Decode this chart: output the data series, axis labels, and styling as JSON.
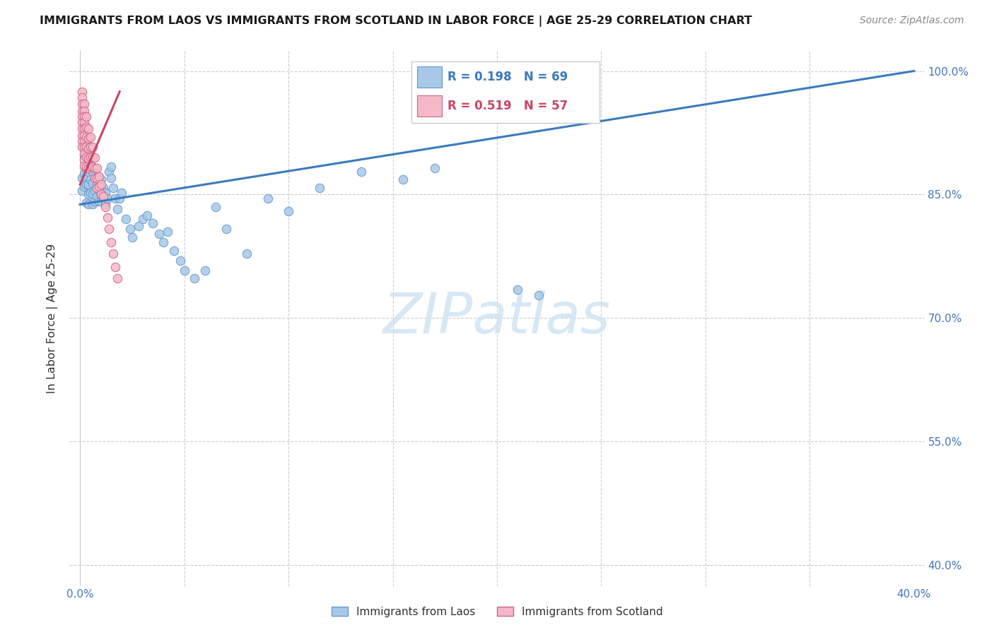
{
  "title": "IMMIGRANTS FROM LAOS VS IMMIGRANTS FROM SCOTLAND IN LABOR FORCE | AGE 25-29 CORRELATION CHART",
  "source": "Source: ZipAtlas.com",
  "ylabel": "In Labor Force | Age 25-29",
  "xlim": [
    -0.005,
    0.405
  ],
  "ylim": [
    0.375,
    1.025
  ],
  "yticks": [
    0.4,
    0.55,
    0.7,
    0.85,
    1.0
  ],
  "yticklabels": [
    "40.0%",
    "55.0%",
    "70.0%",
    "85.0%",
    "100.0%"
  ],
  "xticks": [
    0.0,
    0.05,
    0.1,
    0.15,
    0.2,
    0.25,
    0.3,
    0.35,
    0.4
  ],
  "xticklabels": [
    "0.0%",
    "",
    "",
    "",
    "",
    "",
    "",
    "",
    "40.0%"
  ],
  "grid_color": "#cccccc",
  "laos_color": "#a8c8e8",
  "laos_edge": "#6699cc",
  "scotland_color": "#f5b8c8",
  "scotland_edge": "#cc6688",
  "laos_R": 0.198,
  "laos_N": 69,
  "scotland_R": 0.519,
  "scotland_N": 57,
  "laos_line_color": "#3a7abf",
  "scotland_line_color": "#cc4466",
  "tick_color": "#4477bb",
  "background_color": "#ffffff",
  "watermark_color": "#d0e4f4",
  "laos_x": [
    0.001,
    0.001,
    0.002,
    0.002,
    0.002,
    0.003,
    0.003,
    0.003,
    0.003,
    0.003,
    0.004,
    0.004,
    0.004,
    0.004,
    0.005,
    0.005,
    0.005,
    0.006,
    0.006,
    0.006,
    0.006,
    0.007,
    0.007,
    0.008,
    0.008,
    0.009,
    0.009,
    0.01,
    0.01,
    0.01,
    0.011,
    0.011,
    0.012,
    0.012,
    0.013,
    0.014,
    0.015,
    0.015,
    0.016,
    0.017,
    0.018,
    0.019,
    0.02,
    0.022,
    0.024,
    0.025,
    0.028,
    0.03,
    0.032,
    0.035,
    0.038,
    0.04,
    0.042,
    0.045,
    0.048,
    0.05,
    0.055,
    0.06,
    0.065,
    0.07,
    0.08,
    0.09,
    0.1,
    0.115,
    0.135,
    0.155,
    0.17,
    0.21,
    0.22
  ],
  "laos_y": [
    0.87,
    0.855,
    0.875,
    0.86,
    0.898,
    0.872,
    0.895,
    0.88,
    0.862,
    0.84,
    0.878,
    0.862,
    0.85,
    0.838,
    0.885,
    0.868,
    0.852,
    0.878,
    0.864,
    0.85,
    0.838,
    0.855,
    0.842,
    0.862,
    0.848,
    0.855,
    0.842,
    0.868,
    0.855,
    0.842,
    0.858,
    0.845,
    0.852,
    0.838,
    0.845,
    0.878,
    0.884,
    0.87,
    0.858,
    0.845,
    0.832,
    0.845,
    0.852,
    0.82,
    0.808,
    0.798,
    0.812,
    0.82,
    0.825,
    0.815,
    0.802,
    0.792,
    0.805,
    0.782,
    0.77,
    0.758,
    0.748,
    0.758,
    0.835,
    0.808,
    0.778,
    0.845,
    0.83,
    0.858,
    0.878,
    0.868,
    0.882,
    0.735,
    0.728
  ],
  "scotland_x": [
    0.001,
    0.001,
    0.001,
    0.001,
    0.001,
    0.001,
    0.001,
    0.001,
    0.001,
    0.001,
    0.002,
    0.002,
    0.002,
    0.002,
    0.002,
    0.002,
    0.002,
    0.002,
    0.002,
    0.002,
    0.002,
    0.003,
    0.003,
    0.003,
    0.003,
    0.003,
    0.003,
    0.004,
    0.004,
    0.004,
    0.004,
    0.004,
    0.005,
    0.005,
    0.005,
    0.005,
    0.006,
    0.006,
    0.006,
    0.007,
    0.007,
    0.007,
    0.008,
    0.008,
    0.008,
    0.009,
    0.009,
    0.01,
    0.01,
    0.011,
    0.012,
    0.013,
    0.014,
    0.015,
    0.016,
    0.017,
    0.018
  ],
  "scotland_y": [
    0.975,
    0.968,
    0.96,
    0.952,
    0.945,
    0.938,
    0.93,
    0.922,
    0.915,
    0.908,
    0.96,
    0.952,
    0.945,
    0.938,
    0.93,
    0.922,
    0.915,
    0.908,
    0.9,
    0.892,
    0.885,
    0.945,
    0.932,
    0.92,
    0.908,
    0.896,
    0.884,
    0.93,
    0.918,
    0.906,
    0.894,
    0.882,
    0.92,
    0.908,
    0.896,
    0.884,
    0.908,
    0.896,
    0.884,
    0.895,
    0.882,
    0.87,
    0.882,
    0.87,
    0.858,
    0.872,
    0.86,
    0.862,
    0.85,
    0.848,
    0.835,
    0.822,
    0.808,
    0.792,
    0.778,
    0.762,
    0.748
  ],
  "laos_line_x0": 0.0,
  "laos_line_x1": 0.4,
  "laos_line_y0": 0.838,
  "laos_line_y1": 1.0,
  "scotland_line_x0": 0.0,
  "scotland_line_x1": 0.019,
  "scotland_line_y0": 0.862,
  "scotland_line_y1": 0.975,
  "watermark": "ZIPatlas"
}
